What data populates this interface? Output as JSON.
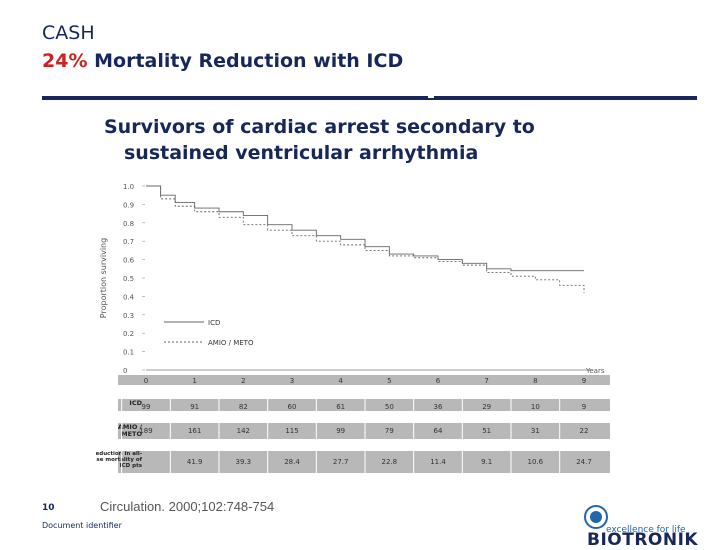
{
  "header": {
    "title_line1": "CASH",
    "title_pct": "24%",
    "title_rest": "Mortality Reduction with ICD"
  },
  "subtitle": {
    "line1": "Survivors of cardiac arrest secondary to",
    "line2": "sustained ventricular arrhythmia"
  },
  "footer": {
    "page_number": "10",
    "citation": "Circulation. 2000;102:748-754",
    "document_identifier": "Document identifier",
    "logo_name": "BIOTRONIK",
    "logo_tagline": "excellence for life"
  },
  "colors": {
    "navy": "#17275a",
    "red": "#cc2222",
    "table_band": "#b8b8b8"
  },
  "chart_data": {
    "type": "line",
    "ylabel": "Proportion surviving",
    "xlabel": "Years",
    "ylim": [
      0,
      1.0
    ],
    "xlim": [
      0,
      9
    ],
    "y_ticks": [
      "0",
      "0.1",
      "0.2",
      "0.3",
      "0.4",
      "0.5",
      "0.6",
      "0.7",
      "0.8",
      "0.9",
      "1.0"
    ],
    "x_ticks": [
      "0",
      "1",
      "2",
      "3",
      "4",
      "5",
      "6",
      "7",
      "8",
      "9"
    ],
    "legend": [
      {
        "name": "ICD",
        "style": "solid"
      },
      {
        "name": "AMIO / METO",
        "style": "dashed"
      }
    ],
    "series": [
      {
        "name": "ICD",
        "style": "solid",
        "x": [
          0,
          0.3,
          0.6,
          1,
          1.5,
          2,
          2.5,
          3,
          3.5,
          4,
          4.5,
          5,
          5.5,
          6,
          6.5,
          7,
          7.5,
          8,
          8.5,
          9
        ],
        "y": [
          1.0,
          0.95,
          0.91,
          0.88,
          0.86,
          0.84,
          0.79,
          0.76,
          0.73,
          0.71,
          0.67,
          0.63,
          0.62,
          0.6,
          0.58,
          0.55,
          0.54,
          0.54,
          0.54,
          0.54
        ]
      },
      {
        "name": "AMIO / METO",
        "style": "dashed",
        "x": [
          0,
          0.3,
          0.6,
          1,
          1.5,
          2,
          2.5,
          3,
          3.5,
          4,
          4.5,
          5,
          5.5,
          6,
          6.5,
          7,
          7.5,
          8,
          8.5,
          9
        ],
        "y": [
          1.0,
          0.93,
          0.89,
          0.86,
          0.83,
          0.79,
          0.76,
          0.73,
          0.7,
          0.68,
          0.65,
          0.62,
          0.61,
          0.59,
          0.57,
          0.53,
          0.51,
          0.49,
          0.46,
          0.42
        ]
      }
    ],
    "table": {
      "columns": [
        "0",
        "1",
        "2",
        "3",
        "4",
        "5",
        "6",
        "7",
        "8",
        "9"
      ],
      "rows": [
        {
          "label": "ICD",
          "values": [
            "99",
            "91",
            "82",
            "60",
            "61",
            "50",
            "36",
            "29",
            "10",
            "9"
          ]
        },
        {
          "label": "AMIO / METO",
          "values": [
            "189",
            "161",
            "142",
            "115",
            "99",
            "79",
            "64",
            "51",
            "31",
            "22"
          ]
        },
        {
          "label": "% reduction in all-cause mortality of ICD pts",
          "values": [
            "",
            "41.9",
            "39.3",
            "28.4",
            "27.7",
            "22.8",
            "11.4",
            "9.1",
            "10.6",
            "24.7"
          ]
        }
      ]
    }
  }
}
